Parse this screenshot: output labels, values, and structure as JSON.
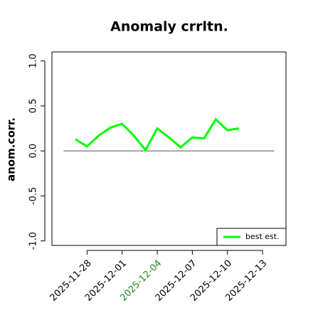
{
  "chart_data": {
    "type": "line",
    "title": "Anomaly crrltn.",
    "ylabel": "anom.corr.",
    "x": [
      "2025-11-27",
      "2025-11-28",
      "2025-11-29",
      "2025-11-30",
      "2025-12-01",
      "2025-12-02",
      "2025-12-03",
      "2025-12-04",
      "2025-12-05",
      "2025-12-06",
      "2025-12-07",
      "2025-12-08",
      "2025-12-09",
      "2025-12-10",
      "2025-12-11"
    ],
    "series": [
      {
        "name": "best est.",
        "color": "#00ff00",
        "values": [
          0.13,
          0.05,
          0.17,
          0.26,
          0.3,
          0.17,
          0.01,
          0.25,
          0.15,
          0.04,
          0.15,
          0.14,
          0.35,
          0.23,
          0.25
        ]
      }
    ],
    "xlim": [
      "2025-11-25",
      "2025-12-15"
    ],
    "xticks": [
      "2025-11-28",
      "2025-12-01",
      "2025-12-04",
      "2025-12-07",
      "2025-12-10",
      "2025-12-13"
    ],
    "highlight_xtick_index": 2,
    "highlight_color": "#228b22",
    "ylim": [
      -1.05,
      1.1
    ],
    "yticks": [
      {
        "value": -1,
        "label": "-1.0"
      },
      -0.5,
      {
        "value": 0,
        "label": "0.0"
      },
      0.5,
      {
        "value": 1,
        "label": "1.0"
      }
    ],
    "hline": 0,
    "legend": "bottomright"
  }
}
